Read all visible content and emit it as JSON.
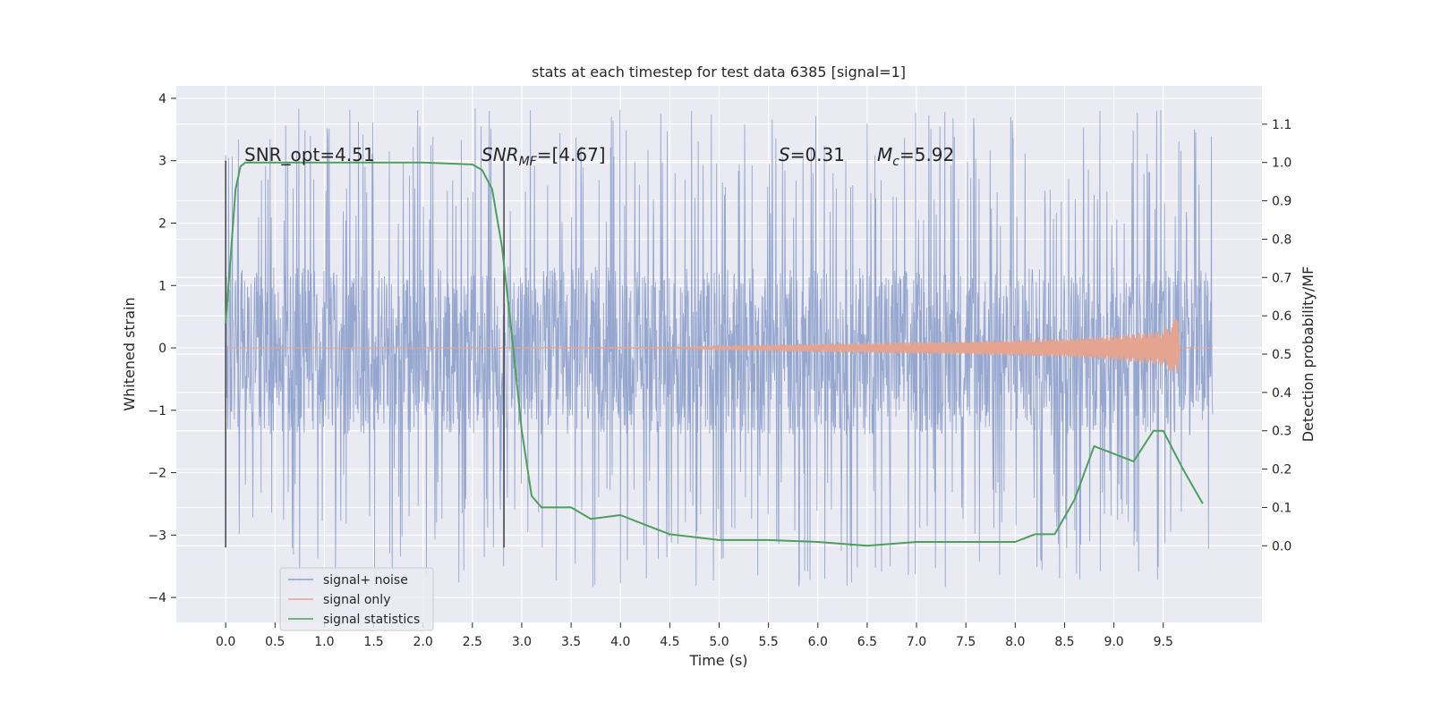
{
  "chart_data": {
    "type": "line",
    "title": "stats at each timestep for test data 6385 [signal=1]",
    "xlabel": "Time (s)",
    "ylabel": "Whitened strain",
    "ylabel_right": "Detection probability/MF",
    "xlim": [
      -0.5,
      10.5
    ],
    "ylim": [
      -4.4,
      4.2
    ],
    "ylim_right": [
      -0.2,
      1.2
    ],
    "xticks": [
      "0.0",
      "0.5",
      "1.0",
      "1.5",
      "2.0",
      "2.5",
      "3.0",
      "3.5",
      "4.0",
      "4.5",
      "5.0",
      "5.5",
      "6.0",
      "6.5",
      "7.0",
      "7.5",
      "8.0",
      "8.5",
      "9.0",
      "9.5"
    ],
    "xtick_values": [
      0.0,
      0.5,
      1.0,
      1.5,
      2.0,
      2.5,
      3.0,
      3.5,
      4.0,
      4.5,
      5.0,
      5.5,
      6.0,
      6.5,
      7.0,
      7.5,
      8.0,
      8.5,
      9.0,
      9.5
    ],
    "yticks": [
      "−4",
      "−3",
      "−2",
      "−1",
      "0",
      "1",
      "2",
      "3",
      "4"
    ],
    "ytick_values": [
      -4,
      -3,
      -2,
      -1,
      0,
      1,
      2,
      3,
      4
    ],
    "yticks_right": [
      "0.0",
      "0.1",
      "0.2",
      "0.3",
      "0.4",
      "0.5",
      "0.6",
      "0.7",
      "0.8",
      "0.9",
      "1.0",
      "1.1"
    ],
    "ytick_right_values": [
      0.0,
      0.1,
      0.2,
      0.3,
      0.4,
      0.5,
      0.6,
      0.7,
      0.8,
      0.9,
      1.0,
      1.1
    ],
    "grid": true,
    "legend_position": "lower-left",
    "annotations": {
      "snr_opt": "SNR_opt=4.51",
      "snr_mf_main": "SNR",
      "snr_mf_sub": "MF",
      "snr_mf_value": "=[4.67]",
      "s_main": "S",
      "s_value": "=0.31",
      "mc_main": "M",
      "mc_sub": "c",
      "mc_value": "=5.92"
    },
    "vertical_markers": [
      0.0,
      2.82
    ],
    "series": [
      {
        "name": "signal+ noise",
        "color": "#8da0cb",
        "axis": "left",
        "x_range": [
          0.0,
          10.0
        ],
        "envelope": {
          "dense_low": -1.4,
          "dense_high": 1.3,
          "peak_high": 3.85,
          "peak_low": -3.85
        }
      },
      {
        "name": "signal only",
        "color": "#e5a48f",
        "axis": "left",
        "chirp": {
          "x": [
            0.0,
            4.5,
            5.5,
            6.5,
            7.5,
            8.5,
            9.0,
            9.5,
            9.65,
            9.67
          ],
          "amplitude": [
            0.0,
            0.01,
            0.05,
            0.08,
            0.11,
            0.15,
            0.2,
            0.28,
            0.5,
            0.0
          ]
        }
      },
      {
        "name": "signal statistics",
        "color": "#4c9f5c",
        "axis": "right",
        "x": [
          0.0,
          0.05,
          0.1,
          0.15,
          0.2,
          0.3,
          0.5,
          1.0,
          1.5,
          2.0,
          2.5,
          2.6,
          2.7,
          2.8,
          2.9,
          3.0,
          3.1,
          3.2,
          3.3,
          3.5,
          3.7,
          4.0,
          4.3,
          4.5,
          5.0,
          5.5,
          6.0,
          6.5,
          7.0,
          7.5,
          8.0,
          8.2,
          8.4,
          8.6,
          8.8,
          9.0,
          9.2,
          9.4,
          9.5,
          9.7,
          9.9
        ],
        "values": [
          0.58,
          0.75,
          0.93,
          0.99,
          1.0,
          1.0,
          1.0,
          1.0,
          1.0,
          1.0,
          0.995,
          0.98,
          0.93,
          0.78,
          0.55,
          0.3,
          0.13,
          0.1,
          0.1,
          0.1,
          0.07,
          0.08,
          0.05,
          0.03,
          0.015,
          0.015,
          0.01,
          0.0,
          0.01,
          0.01,
          0.01,
          0.03,
          0.03,
          0.12,
          0.26,
          0.24,
          0.22,
          0.3,
          0.3,
          0.2,
          0.11
        ]
      }
    ]
  }
}
